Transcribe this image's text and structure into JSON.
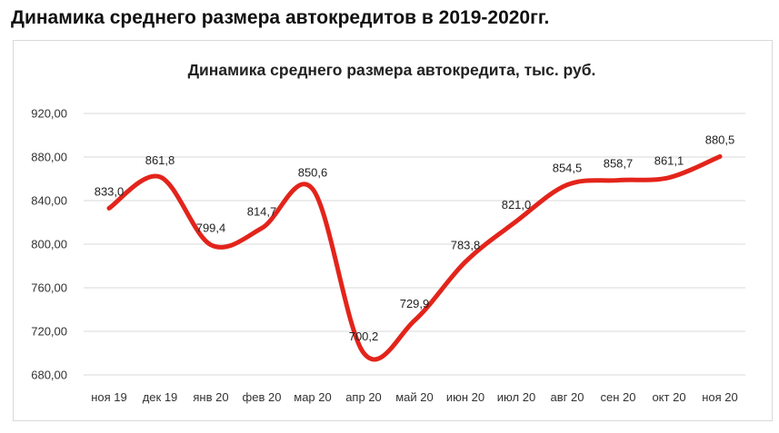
{
  "page": {
    "heading": "Динамика среднего размера автокредитов в 2019-2020гг."
  },
  "colors": {
    "line": "#e3241b",
    "grid": "#d9d9d9",
    "text": "#222222"
  },
  "chart_data": {
    "type": "line",
    "title": "Динамика среднего размера автокредита,  тыс. руб.",
    "xlabel": "",
    "ylabel": "",
    "categories": [
      "ноя 19",
      "дек 19",
      "янв 20",
      "фев 20",
      "мар 20",
      "апр 20",
      "май 20",
      "июн 20",
      "июл 20",
      "авг 20",
      "сен 20",
      "окт 20",
      "ноя 20"
    ],
    "series": [
      {
        "values": [
          833.0,
          861.8,
          799.4,
          814.7,
          850.6,
          700.2,
          729.9,
          783.8,
          821.0,
          854.5,
          858.7,
          861.1,
          880.5
        ],
        "labels": [
          "833,0",
          "861,8",
          "799,4",
          "814,7",
          "850,6",
          "700,2",
          "729,9",
          "783,8",
          "821,0",
          "854,5",
          "858,7",
          "861,1",
          "880,5"
        ]
      }
    ],
    "ylim": [
      680,
      920
    ],
    "yticks": [
      680,
      720,
      760,
      800,
      840,
      880,
      920
    ],
    "ytick_labels": [
      "680,00",
      "720,00",
      "760,00",
      "800,00",
      "840,00",
      "880,00",
      "920,00"
    ],
    "grid": true,
    "legend": "none",
    "smooth": true
  }
}
